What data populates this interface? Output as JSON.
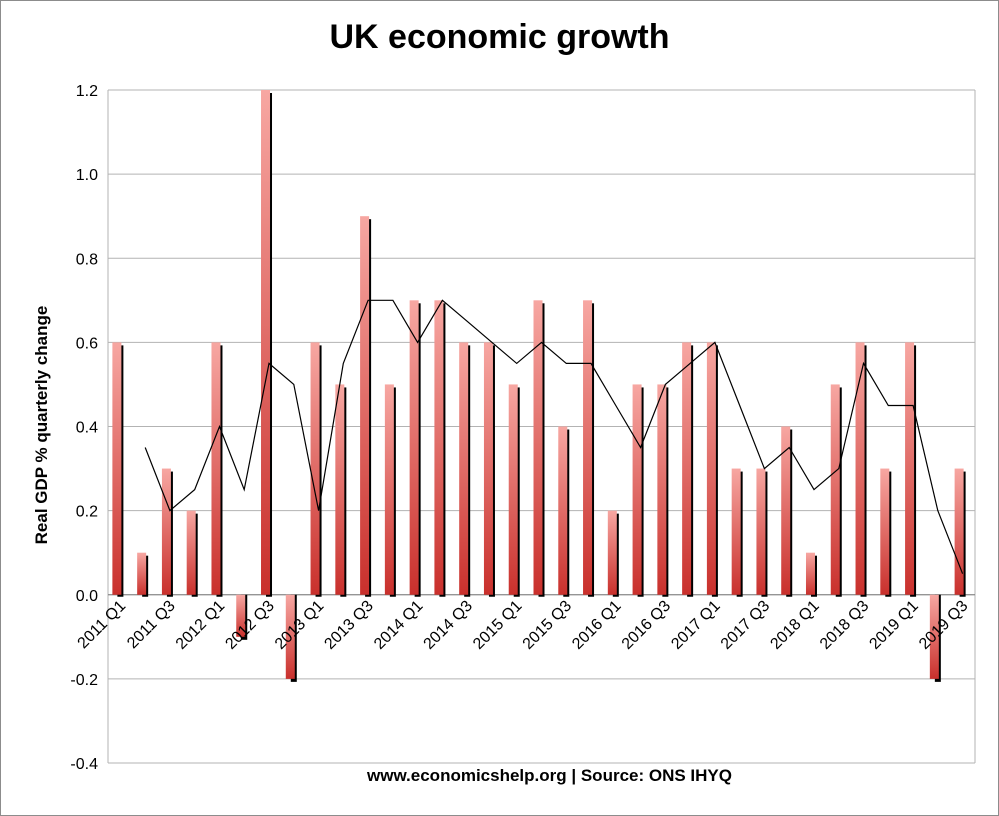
{
  "chart_data": {
    "type": "bar",
    "title": "UK economic growth",
    "ylabel": "Real GDP % quarterly change",
    "xlabel": "www.economicshelp.org | Source: ONS  IHYQ",
    "ylim": [
      -0.4,
      1.2
    ],
    "yticks": [
      "1.2",
      "1.0",
      "0.8",
      "0.6",
      "0.4",
      "0.2",
      "0.0",
      "-0.2",
      "-0.4"
    ],
    "grid": true,
    "legend": "none",
    "categories": [
      "2011 Q1",
      "2011 Q2",
      "2011 Q3",
      "2011 Q4",
      "2012 Q1",
      "2012 Q2",
      "2012 Q3",
      "2012 Q4",
      "2013 Q1",
      "2013 Q2",
      "2013 Q3",
      "2013 Q4",
      "2014 Q1",
      "2014 Q2",
      "2014 Q3",
      "2014 Q4",
      "2015 Q1",
      "2015 Q2",
      "2015 Q3",
      "2015 Q4",
      "2016 Q1",
      "2016 Q2",
      "2016 Q3",
      "2016 Q4",
      "2017 Q1",
      "2017 Q2",
      "2017 Q3",
      "2017 Q4",
      "2018 Q1",
      "2018 Q2",
      "2018 Q3",
      "2018 Q4",
      "2019 Q1",
      "2019 Q2",
      "2019 Q3"
    ],
    "x_tick_labels": [
      "2011 Q1",
      "2011 Q3",
      "2012 Q1",
      "2012 Q3",
      "2013 Q1",
      "2013 Q3",
      "2014 Q1",
      "2014 Q3",
      "2015 Q1",
      "2015 Q3",
      "2016 Q1",
      "2016 Q3",
      "2017 Q1",
      "2017 Q3",
      "2018 Q1",
      "2018 Q3",
      "2019 Q1",
      "2019 Q3"
    ],
    "series": [
      {
        "type": "bar",
        "values": [
          0.6,
          0.1,
          0.3,
          0.2,
          0.6,
          -0.1,
          1.2,
          -0.2,
          0.6,
          0.5,
          0.9,
          0.5,
          0.7,
          0.7,
          0.6,
          0.6,
          0.5,
          0.7,
          0.4,
          0.7,
          0.2,
          0.5,
          0.5,
          0.6,
          0.6,
          0.3,
          0.3,
          0.4,
          0.1,
          0.5,
          0.6,
          0.3,
          0.6,
          -0.2,
          0.3
        ]
      },
      {
        "type": "line",
        "values": [
          null,
          0.35,
          0.2,
          0.25,
          0.4,
          0.25,
          0.55,
          0.5,
          0.2,
          0.55,
          0.7,
          0.7,
          0.6,
          0.7,
          0.65,
          0.6,
          0.55,
          0.6,
          0.55,
          0.55,
          0.45,
          0.35,
          0.5,
          0.55,
          0.6,
          0.45,
          0.3,
          0.35,
          0.25,
          0.3,
          0.55,
          0.45,
          0.45,
          0.2,
          0.05
        ]
      }
    ],
    "colors": {
      "bar_gradient_top": "#f7a7a2",
      "bar_gradient_bottom": "#c9302c",
      "bar_shadow": "#000000",
      "line": "#000000",
      "grid": "#b3b3b3"
    }
  }
}
